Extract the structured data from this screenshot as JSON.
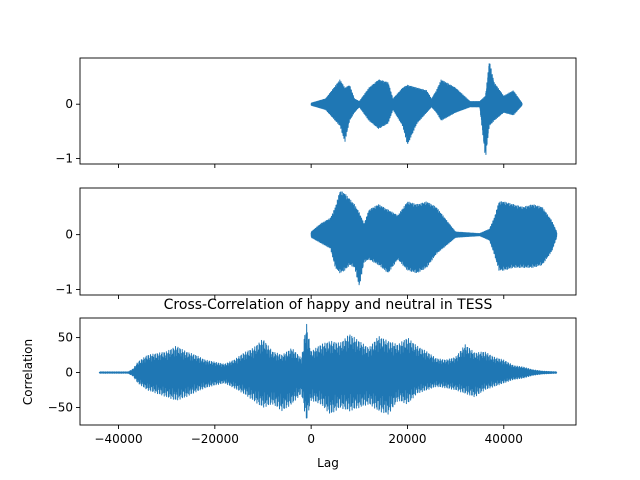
{
  "chart_data": [
    {
      "type": "line",
      "title": "",
      "xlabel": "",
      "ylabel": "",
      "xlim": [
        -48000,
        55000
      ],
      "ylim": [
        -1.1,
        0.85
      ],
      "y_ticks": [
        -1,
        0
      ],
      "x_ticks": [
        -40000,
        -20000,
        0,
        20000,
        40000
      ],
      "x_ticklabels_visible": false,
      "grid": false,
      "series": [
        {
          "color": "#1f77b4",
          "x_range": [
            0,
            43800
          ],
          "envelope": {
            "x": [
              0,
              3000,
              6000,
              7000,
              8000,
              9000,
              10000,
              12000,
              14000,
              16000,
              17000,
              19000,
              20000,
              22000,
              24000,
              25000,
              26000,
              27000,
              30000,
              33000,
              35000,
              36200,
              37000,
              38000,
              40000,
              42000,
              43800
            ],
            "upper": [
              0.02,
              0.1,
              0.45,
              0.3,
              0.35,
              0.1,
              0.05,
              0.3,
              0.45,
              0.4,
              0.1,
              0.3,
              0.35,
              0.3,
              0.25,
              0.1,
              0.25,
              0.45,
              0.3,
              0.05,
              0.05,
              0.15,
              0.8,
              0.4,
              0.15,
              0.25,
              0.02
            ],
            "lower": [
              -0.02,
              -0.1,
              -0.4,
              -0.7,
              -0.3,
              -0.15,
              -0.05,
              -0.3,
              -0.45,
              -0.35,
              -0.1,
              -0.4,
              -0.75,
              -0.35,
              -0.15,
              -0.05,
              -0.15,
              -0.3,
              -0.15,
              -0.05,
              -0.05,
              -1.0,
              -0.4,
              -0.3,
              -0.15,
              -0.2,
              -0.02
            ]
          }
        }
      ]
    },
    {
      "type": "line",
      "title": "",
      "xlabel": "",
      "ylabel": "",
      "xlim": [
        -48000,
        55000
      ],
      "ylim": [
        -1.1,
        0.85
      ],
      "y_ticks": [
        -1,
        0
      ],
      "x_ticks": [
        -40000,
        -20000,
        0,
        20000,
        40000
      ],
      "x_ticklabels_visible": false,
      "grid": false,
      "series": [
        {
          "color": "#1f77b4",
          "x_range": [
            0,
            51000
          ],
          "envelope": {
            "x": [
              0,
              2000,
              4000,
              5000,
              6000,
              7000,
              8000,
              9000,
              10000,
              11000,
              12000,
              14000,
              16000,
              18000,
              20000,
              22000,
              24000,
              26000,
              30000,
              35000,
              37000,
              38000,
              39000,
              40000,
              42000,
              44000,
              46000,
              48000,
              50000,
              51000
            ],
            "upper": [
              0.05,
              0.2,
              0.3,
              0.5,
              0.8,
              0.75,
              0.65,
              0.55,
              0.4,
              0.2,
              0.45,
              0.55,
              0.45,
              0.35,
              0.6,
              0.55,
              0.6,
              0.5,
              0.05,
              0.02,
              0.1,
              0.3,
              0.6,
              0.6,
              0.55,
              0.5,
              0.55,
              0.5,
              0.25,
              0.05
            ],
            "lower": [
              -0.05,
              -0.15,
              -0.25,
              -0.6,
              -0.7,
              -0.65,
              -0.55,
              -0.6,
              -0.95,
              -0.5,
              -0.45,
              -0.55,
              -0.7,
              -0.45,
              -0.65,
              -0.7,
              -0.6,
              -0.35,
              -0.05,
              -0.02,
              -0.1,
              -0.35,
              -0.65,
              -0.65,
              -0.6,
              -0.6,
              -0.6,
              -0.55,
              -0.3,
              -0.05
            ]
          }
        }
      ]
    },
    {
      "type": "line",
      "title": "Cross-Correlation of happy and neutral in TESS",
      "xlabel": "Lag",
      "ylabel": "Correlation",
      "xlim": [
        -48000,
        55000
      ],
      "ylim": [
        -75,
        78
      ],
      "y_ticks": [
        -50,
        0,
        50
      ],
      "x_ticks": [
        -40000,
        -20000,
        0,
        20000,
        40000
      ],
      "x_ticklabels": [
        "−40000",
        "−20000",
        "0",
        "20000",
        "40000"
      ],
      "x_ticklabels_visible": true,
      "grid": false,
      "series": [
        {
          "color": "#1f77b4",
          "x_range": [
            -44000,
            51000
          ],
          "envelope": {
            "x": [
              -44000,
              -38000,
              -37000,
              -36000,
              -34000,
              -30000,
              -28000,
              -26000,
              -24000,
              -22000,
              -20000,
              -18000,
              -16000,
              -14000,
              -12000,
              -10000,
              -8000,
              -6000,
              -4000,
              -2000,
              -1000,
              0,
              2000,
              4000,
              6000,
              8000,
              10000,
              12000,
              14000,
              16000,
              18000,
              20000,
              22000,
              24000,
              26000,
              28000,
              30000,
              32000,
              34000,
              36000,
              38000,
              40000,
              42000,
              44000,
              46000,
              48000,
              51000
            ],
            "upper": [
              1,
              1,
              5,
              15,
              25,
              30,
              38,
              30,
              25,
              18,
              15,
              12,
              18,
              28,
              35,
              48,
              30,
              25,
              35,
              20,
              72,
              30,
              40,
              45,
              42,
              55,
              45,
              35,
              52,
              45,
              40,
              50,
              38,
              30,
              20,
              18,
              22,
              40,
              28,
              30,
              22,
              18,
              10,
              8,
              4,
              2,
              1
            ],
            "lower": [
              -1,
              -1,
              -5,
              -15,
              -25,
              -35,
              -40,
              -35,
              -28,
              -22,
              -18,
              -15,
              -22,
              -30,
              -40,
              -50,
              -45,
              -55,
              -45,
              -30,
              -70,
              -40,
              -45,
              -60,
              -50,
              -55,
              -50,
              -45,
              -55,
              -60,
              -40,
              -45,
              -30,
              -25,
              -20,
              -22,
              -25,
              -30,
              -35,
              -25,
              -20,
              -15,
              -10,
              -8,
              -4,
              -2,
              -1
            ]
          }
        }
      ]
    }
  ]
}
